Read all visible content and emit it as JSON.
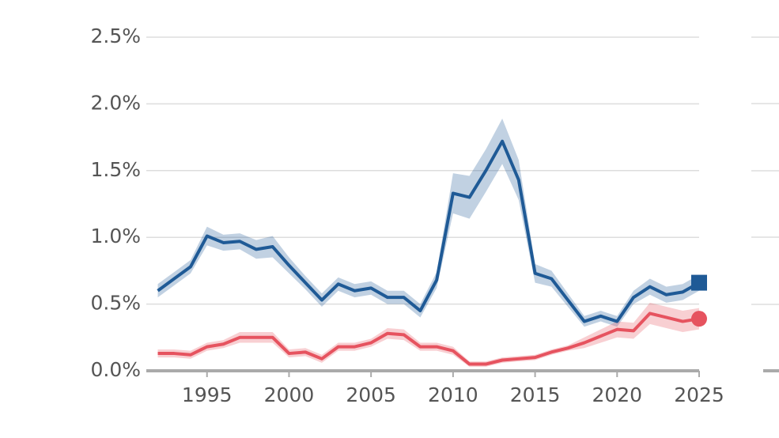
{
  "chart_data": {
    "type": "line",
    "x": [
      1992,
      1993,
      1994,
      1995,
      1996,
      1997,
      1998,
      1999,
      2000,
      2001,
      2002,
      2003,
      2004,
      2005,
      2006,
      2007,
      2008,
      2009,
      2010,
      2011,
      2012,
      2013,
      2014,
      2015,
      2016,
      2017,
      2018,
      2019,
      2020,
      2021,
      2022,
      2023,
      2024,
      2025
    ],
    "series": [
      {
        "color": "#1f5a96",
        "marker": "square",
        "values": [
          0.6,
          0.69,
          0.78,
          1.01,
          0.96,
          0.97,
          0.91,
          0.93,
          0.79,
          0.66,
          0.53,
          0.65,
          0.6,
          0.62,
          0.55,
          0.55,
          0.45,
          0.68,
          1.33,
          1.3,
          1.5,
          1.72,
          1.43,
          0.73,
          0.69,
          0.53,
          0.37,
          0.41,
          0.37,
          0.55,
          0.63,
          0.57,
          0.59,
          0.66
        ],
        "error": [
          0.05,
          0.05,
          0.05,
          0.07,
          0.06,
          0.06,
          0.07,
          0.08,
          0.06,
          0.05,
          0.05,
          0.05,
          0.05,
          0.05,
          0.05,
          0.05,
          0.05,
          0.06,
          0.15,
          0.16,
          0.16,
          0.17,
          0.15,
          0.07,
          0.06,
          0.05,
          0.04,
          0.04,
          0.04,
          0.05,
          0.06,
          0.06,
          0.06,
          0.06
        ]
      },
      {
        "color": "#e6535f",
        "marker": "circle",
        "values": [
          0.13,
          0.13,
          0.12,
          0.18,
          0.2,
          0.25,
          0.25,
          0.25,
          0.13,
          0.14,
          0.09,
          0.18,
          0.18,
          0.21,
          0.28,
          0.27,
          0.18,
          0.18,
          0.15,
          0.05,
          0.05,
          0.08,
          0.09,
          0.1,
          0.14,
          0.17,
          0.21,
          0.26,
          0.31,
          0.3,
          0.43,
          0.4,
          0.37,
          0.39
        ],
        "error": [
          0.03,
          0.03,
          0.03,
          0.03,
          0.03,
          0.04,
          0.04,
          0.04,
          0.03,
          0.03,
          0.03,
          0.03,
          0.03,
          0.03,
          0.04,
          0.04,
          0.03,
          0.03,
          0.03,
          0.02,
          0.02,
          0.02,
          0.02,
          0.02,
          0.02,
          0.02,
          0.04,
          0.05,
          0.06,
          0.06,
          0.08,
          0.08,
          0.08,
          0.08
        ]
      }
    ],
    "xlim": [
      1991.3,
      2025
    ],
    "xticks": [
      1995,
      2000,
      2005,
      2010,
      2015,
      2020,
      2025
    ],
    "ylim": [
      0,
      2.5
    ],
    "yticks": [
      {
        "value": 0,
        "label": "0.0%"
      },
      {
        "value": 0.5,
        "label": "0.5%"
      },
      {
        "value": 1.0,
        "label": "1.0%"
      },
      {
        "value": 1.5,
        "label": "1.5%"
      },
      {
        "value": 2.0,
        "label": "2.0%"
      },
      {
        "value": 2.5,
        "label": "2.5%"
      }
    ],
    "grid": true
  }
}
